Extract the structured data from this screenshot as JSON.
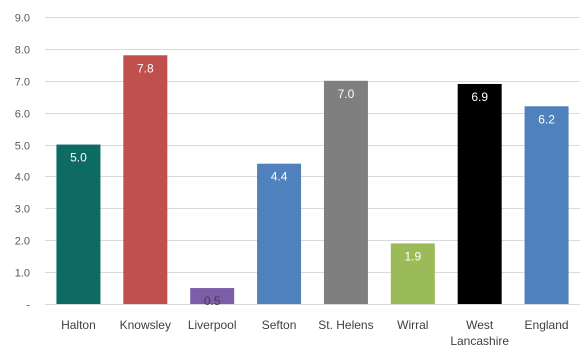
{
  "chart_data": {
    "type": "bar",
    "categories": [
      "Halton",
      "Knowsley",
      "Liverpool",
      "Sefton",
      "St. Helens",
      "Wirral",
      "West Lancashire",
      "England"
    ],
    "category_lines": [
      [
        "Halton"
      ],
      [
        "Knowsley"
      ],
      [
        "Liverpool"
      ],
      [
        "Sefton"
      ],
      [
        "St. Helens"
      ],
      [
        "Wirral"
      ],
      [
        "West",
        "Lancashire"
      ],
      [
        "England"
      ]
    ],
    "values": [
      5.0,
      7.8,
      0.5,
      4.4,
      7.0,
      1.9,
      6.9,
      6.2
    ],
    "value_labels": [
      "5.0",
      "7.8",
      "0.5",
      "4.4",
      "7.0",
      "1.9",
      "6.9",
      "6.2"
    ],
    "colors": [
      "#0d6b63",
      "#c0504d",
      "#7b5ea7",
      "#4f81bd",
      "#7f7f7f",
      "#9bbb59",
      "#000000",
      "#4f81bd"
    ],
    "label_colors": [
      "#ffffff",
      "#ffffff",
      "#404040",
      "#ffffff",
      "#ffffff",
      "#ffffff",
      "#ffffff",
      "#ffffff"
    ],
    "ylim": [
      0,
      9
    ],
    "ytick_values": [
      0,
      1,
      2,
      3,
      4,
      5,
      6,
      7,
      8,
      9
    ],
    "ytick_labels": [
      "-",
      "1.0",
      "2.0",
      "3.0",
      "4.0",
      "5.0",
      "6.0",
      "7.0",
      "8.0",
      "9.0"
    ],
    "grid": true,
    "title": "",
    "xlabel": "",
    "ylabel": ""
  }
}
